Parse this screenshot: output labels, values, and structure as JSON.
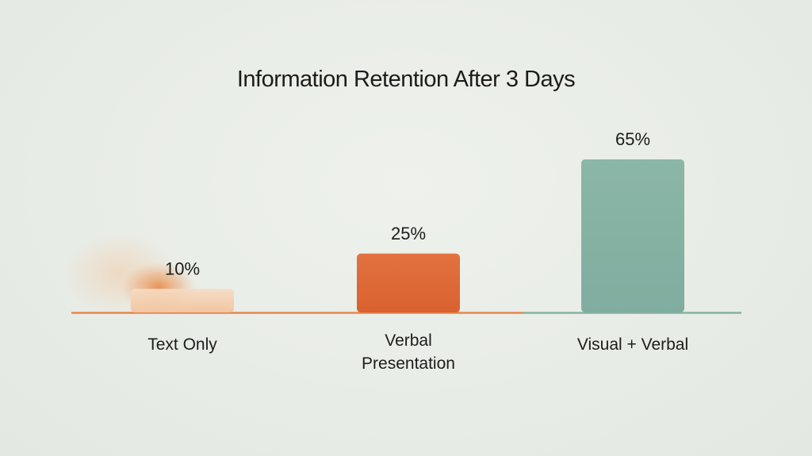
{
  "chart_data": {
    "type": "bar",
    "title": "Information Retention After 3 Days",
    "xlabel": "",
    "ylabel": "",
    "categories": [
      "Text Only",
      "Verbal Presentation",
      "Visual + Verbal"
    ],
    "category_lines": [
      [
        "Text Only"
      ],
      [
        "Verbal",
        "Presentation"
      ],
      [
        "Visual + Verbal"
      ]
    ],
    "values": [
      10,
      25,
      65
    ],
    "value_labels": [
      "10%",
      "25%",
      "65%"
    ],
    "colors": [
      "#f2c9a6",
      "#e0683a",
      "#86b2a4"
    ],
    "axis_colors": [
      "#e6874f",
      "#86b2a4"
    ],
    "grid": false,
    "legend": "none"
  }
}
